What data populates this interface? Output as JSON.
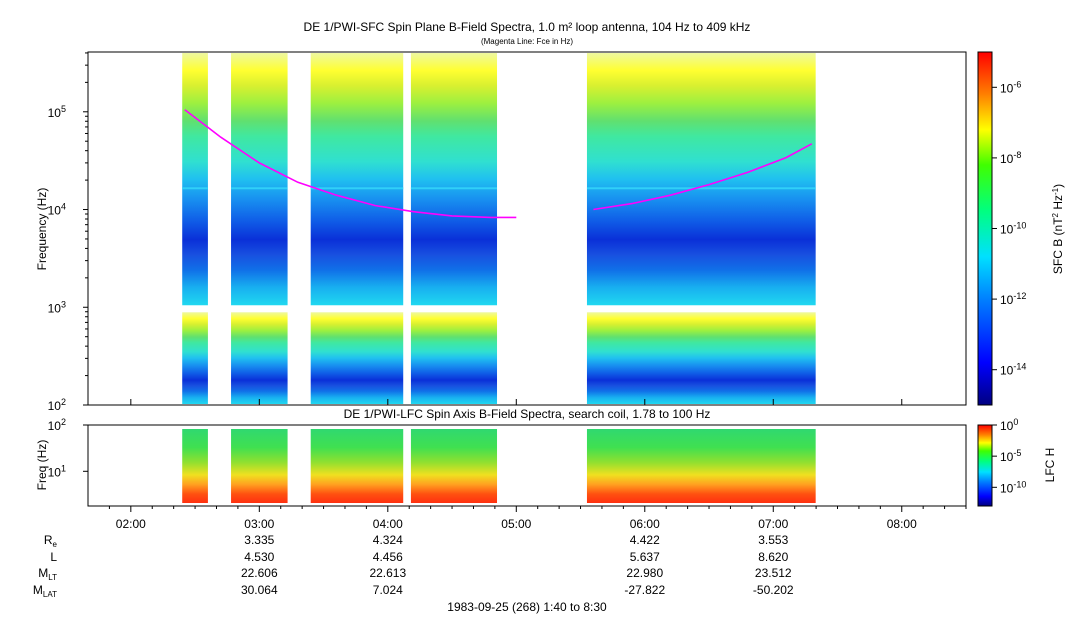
{
  "chart_data": [
    {
      "type": "heatmap",
      "title": "DE 1/PWI-SFC  Spin Plane B-Field Spectra, 1.0 m² loop antenna, 104 Hz to 409 kHz",
      "subtitle": "(Magenta Line: Fce in Hz)",
      "ylabel": "Frequency (Hz)",
      "yscale": "log",
      "ylim": [
        100,
        409000
      ],
      "yticks": [
        {
          "value": 100,
          "base": "10",
          "exp": "2"
        },
        {
          "value": 1000,
          "base": "10",
          "exp": "3"
        },
        {
          "value": 10000,
          "base": "10",
          "exp": "4"
        },
        {
          "value": 100000,
          "base": "10",
          "exp": "5"
        }
      ],
      "data_intervals_hours": [
        [
          2.4,
          2.6
        ],
        [
          2.78,
          3.22
        ],
        [
          3.4,
          4.12
        ],
        [
          4.18,
          4.85
        ],
        [
          5.55,
          7.33
        ]
      ],
      "fce_line": {
        "color": "#ff00ff",
        "segments": [
          [
            [
              2.42,
              105000
            ],
            [
              2.7,
              55000
            ],
            [
              3.0,
              30000
            ],
            [
              3.3,
              19000
            ],
            [
              3.6,
              14000
            ],
            [
              3.9,
              11000
            ],
            [
              4.2,
              9500
            ],
            [
              4.5,
              8600
            ],
            [
              4.8,
              8300
            ],
            [
              5.0,
              8300
            ]
          ],
          [
            [
              5.6,
              10000
            ],
            [
              5.9,
              11500
            ],
            [
              6.2,
              14000
            ],
            [
              6.5,
              18000
            ],
            [
              6.8,
              24000
            ],
            [
              7.1,
              34000
            ],
            [
              7.3,
              47000
            ]
          ]
        ]
      },
      "colorbar": {
        "label_main": "SFC B (nT",
        "label_sup1": "2",
        "label_mid": " Hz",
        "label_sup2": "-1",
        "label_end": ")",
        "min_exp": -15,
        "max_exp": -5,
        "ticks": [
          {
            "base": "10",
            "exp": "-6",
            "value": -6
          },
          {
            "base": "10",
            "exp": "-8",
            "value": -8
          },
          {
            "base": "10",
            "exp": "-10",
            "value": -10
          },
          {
            "base": "10",
            "exp": "-12",
            "value": -12
          },
          {
            "base": "10",
            "exp": "-14",
            "value": -14
          }
        ]
      }
    },
    {
      "type": "heatmap",
      "title": "DE 1/PWI-LFC  Spin Axis B-Field Spectra, search coil, 1.78 to 100 Hz",
      "ylabel": "Freq (Hz)",
      "yscale": "log",
      "ylim": [
        1.78,
        100
      ],
      "yticks": [
        {
          "value": 10,
          "base": "10",
          "exp": "1"
        },
        {
          "value": 100,
          "base": "10",
          "exp": "2"
        }
      ],
      "data_intervals_hours": [
        [
          2.4,
          2.6
        ],
        [
          2.78,
          3.22
        ],
        [
          3.4,
          4.12
        ],
        [
          4.18,
          4.85
        ],
        [
          5.55,
          7.33
        ]
      ],
      "colorbar": {
        "label": "LFC H",
        "min_exp": -13,
        "max_exp": 0,
        "ticks": [
          {
            "base": "10",
            "exp": "0",
            "value": 0
          },
          {
            "base": "10",
            "exp": "-5",
            "value": -5
          },
          {
            "base": "10",
            "exp": "-10",
            "value": -10
          }
        ]
      }
    }
  ],
  "xaxis": {
    "range_hours": [
      1.6667,
      8.5
    ],
    "ticks": [
      {
        "label": "02:00",
        "hour": 2
      },
      {
        "label": "03:00",
        "hour": 3
      },
      {
        "label": "04:00",
        "hour": 4
      },
      {
        "label": "05:00",
        "hour": 5
      },
      {
        "label": "06:00",
        "hour": 6
      },
      {
        "label": "07:00",
        "hour": 7
      },
      {
        "label": "08:00",
        "hour": 8
      }
    ]
  },
  "ephemeris": {
    "rows": [
      {
        "label": "R",
        "sub": "e",
        "values": [
          "3.335",
          "4.324",
          "4.422",
          "3.553"
        ]
      },
      {
        "label": "L",
        "sub": "",
        "values": [
          "4.530",
          "4.456",
          "5.637",
          "8.620"
        ]
      },
      {
        "label": "M",
        "sub": "LT",
        "values": [
          "22.606",
          "22.613",
          "22.980",
          "23.512"
        ]
      },
      {
        "label": "M",
        "sub": "LAT",
        "values": [
          "30.064",
          "7.024",
          "-27.822",
          "-50.202"
        ]
      }
    ],
    "value_hours": [
      3,
      4,
      6,
      7
    ]
  },
  "footer": "1983-09-25 (268) 1:40 to 8:30"
}
